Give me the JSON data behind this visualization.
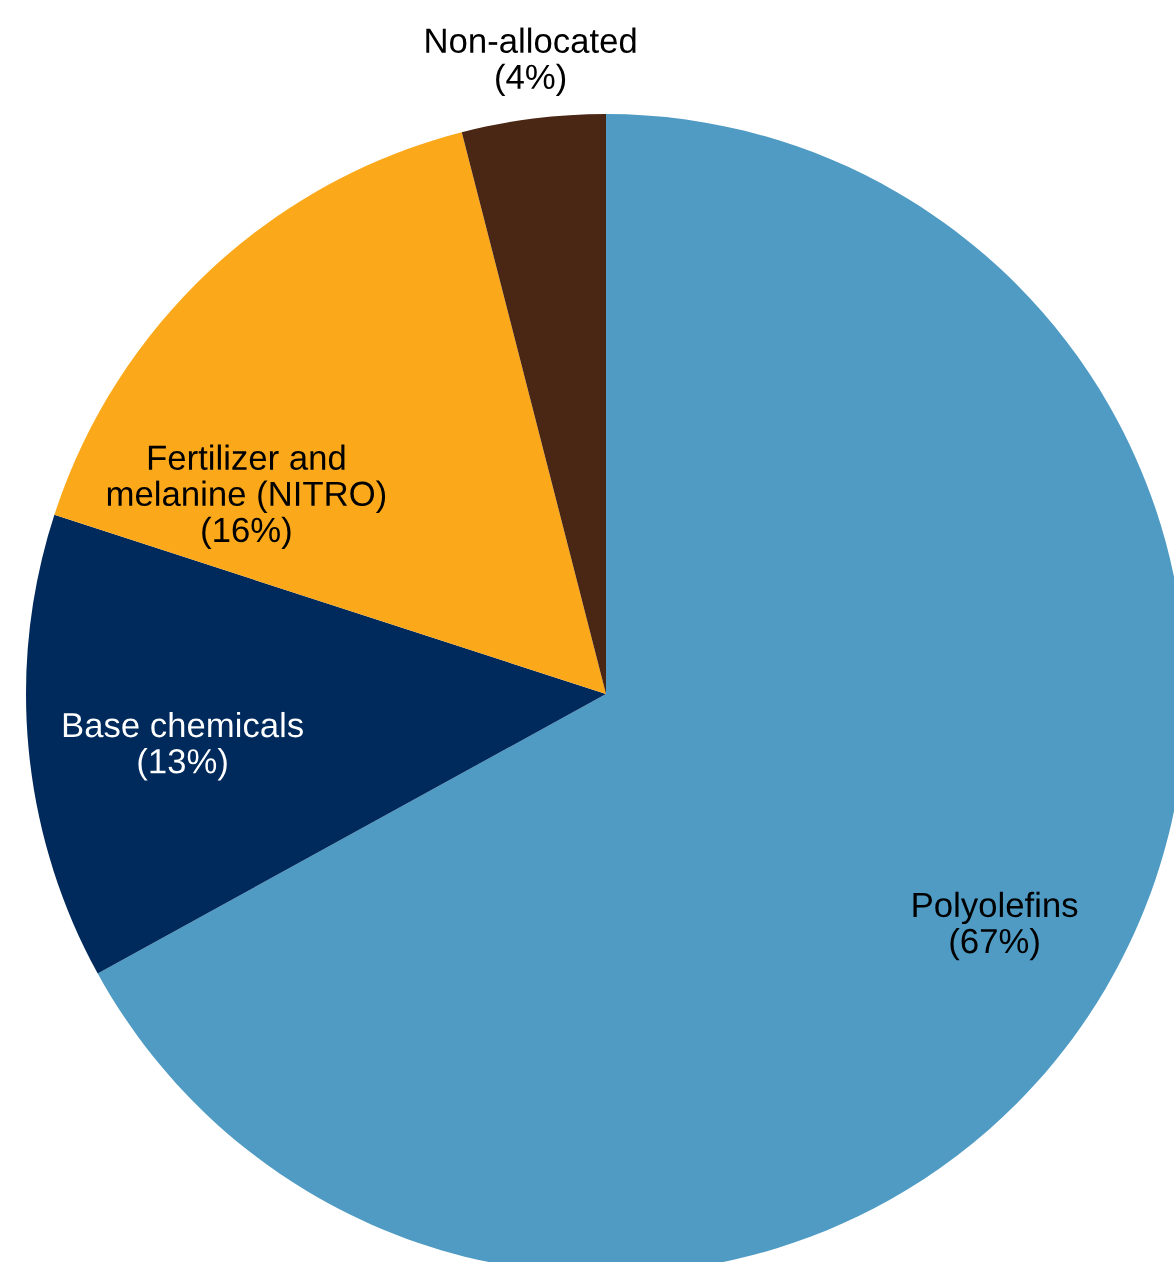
{
  "chart_data": {
    "type": "pie",
    "categories": [
      "Polyolefins",
      "Base chemicals",
      "Fertilizer and\nmelanine (NITRO)",
      "Non-allocated"
    ],
    "values": [
      67,
      13,
      16,
      4
    ],
    "value_labels": [
      "(67%)",
      "(13%)",
      "(16%)",
      "(4%)"
    ],
    "colors": [
      "#4f9bc4",
      "#002a5c",
      "#fba91b",
      "#4a2614"
    ],
    "legend": false
  }
}
